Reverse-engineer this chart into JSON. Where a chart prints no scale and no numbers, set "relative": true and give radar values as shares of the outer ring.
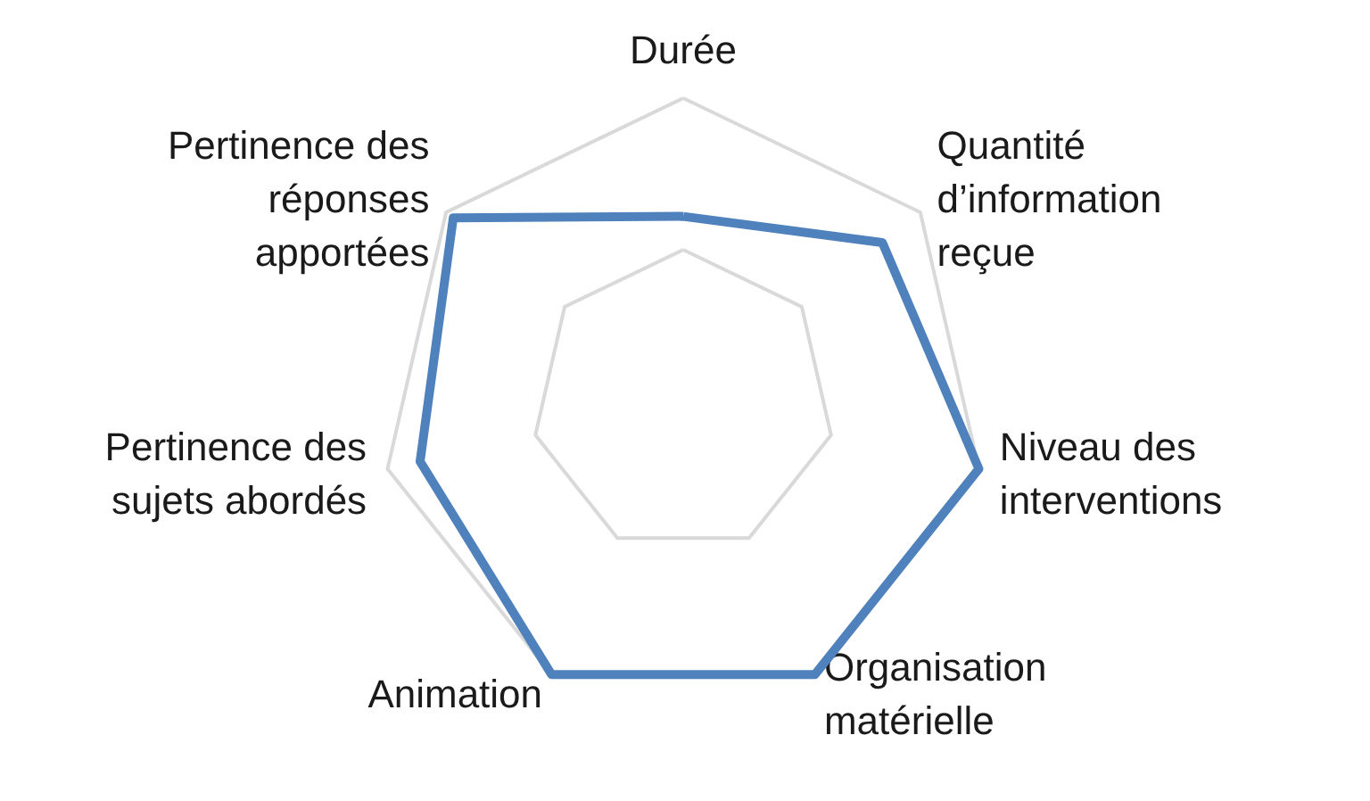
{
  "chart_data": {
    "type": "radar",
    "relative": true,
    "categories": [
      "Durée",
      "Quantité d’information reçue",
      "Niveau des interventions",
      "Organisation matérielle",
      "Animation",
      "Pertinence des sujets abordés",
      "Pertinence des réponses apportées"
    ],
    "series": [
      {
        "color": "#4f81bd",
        "values": [
          0.61,
          0.84,
          1.0,
          1.0,
          1.0,
          0.89,
          0.97
        ]
      }
    ],
    "grid": true,
    "marker": "none",
    "line_style": "solid"
  }
}
